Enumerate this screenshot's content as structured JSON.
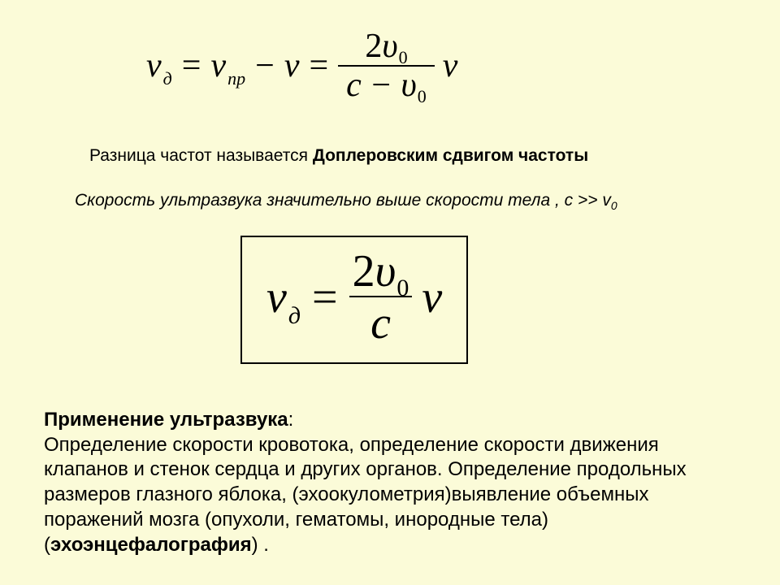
{
  "background_color": "#fbfbd8",
  "text_color": "#000000",
  "body_font_family": "Arial, sans-serif",
  "formula_font_family": "Times New Roman, serif",
  "formula1": {
    "nu": "ν",
    "sub_d": "д",
    "eq": "=",
    "sub_pr": "пр",
    "minus": "−",
    "num_2": "2",
    "upsilon": "υ",
    "sub_0": "0",
    "c": "c",
    "fontsize": 42,
    "sub_fontsize": 22
  },
  "line1": {
    "prefix": "Разница частот  называется ",
    "bold": "Доплеровским сдвигом частоты",
    "fontsize": 21
  },
  "line2": {
    "text_part1": "Скорость ультразвука значительно выше скорости тела , с >> v",
    "sub": "0",
    "fontsize": 21
  },
  "formula2": {
    "nu": "ν",
    "sub_d": "д",
    "eq": "=",
    "num_2": "2",
    "upsilon": "υ",
    "sub_0": "0",
    "c": "c",
    "fontsize": 56,
    "sub_fontsize": 30,
    "border_color": "#000000",
    "border_width": 2
  },
  "paragraph": {
    "title": "Применение ультразвука",
    "colon": ":",
    "body1": "Определение скорости кровотока, определение скорости движения клапанов и стенок сердца и других органов. Определение продольных размеров глазного яблока, (эхоокулометрия)выявление объемных поражений мозга (опухоли, гематомы, инородные тела) (",
    "term": "эхоэнцефалография",
    "body2": ") .",
    "fontsize": 24
  }
}
